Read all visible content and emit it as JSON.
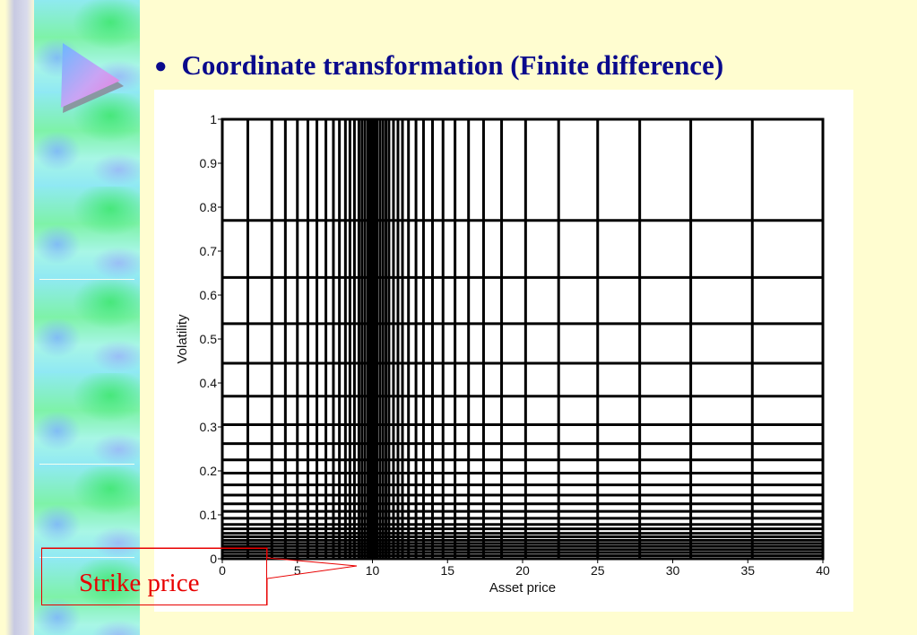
{
  "slide": {
    "title": "Coordinate transformation (Finite difference)",
    "bullet": "●"
  },
  "decor": {
    "logo_icon": "triangle-play-logo"
  },
  "callout": {
    "label": "Strike price",
    "color": "#e80000"
  },
  "colors": {
    "background": "#fffdd0",
    "title": "#0a0a8c",
    "grid": "#000000"
  },
  "chart_data": {
    "type": "grid",
    "title": "",
    "xlabel": "Asset price",
    "ylabel": "Volatility",
    "xlim": [
      0,
      40
    ],
    "ylim": [
      0,
      1
    ],
    "xticks": [
      0,
      5,
      10,
      15,
      20,
      25,
      30,
      35,
      40
    ],
    "yticks": [
      0,
      0.1,
      0.2,
      0.3,
      0.4,
      0.5,
      0.6,
      0.7,
      0.8,
      0.9,
      1
    ],
    "xtick_labels": [
      "0",
      "5",
      "10",
      "15",
      "20",
      "25",
      "30",
      "35",
      "40"
    ],
    "ytick_labels": [
      "0",
      "0.1",
      "0.2",
      "0.3",
      "0.4",
      "0.5",
      "0.6",
      "0.7",
      "0.8",
      "0.9",
      "1"
    ],
    "grid_x": [
      0,
      1.7,
      3.3,
      4.2,
      5,
      5.7,
      6.3,
      6.9,
      7.4,
      7.8,
      8.2,
      8.5,
      8.8,
      9.1,
      9.3,
      9.5,
      9.7,
      9.8,
      9.9,
      10,
      10.1,
      10.2,
      10.3,
      10.5,
      10.7,
      10.9,
      11.1,
      11.4,
      11.7,
      12,
      12.4,
      12.9,
      13.4,
      14,
      14.7,
      15.5,
      16.4,
      17.4,
      18.6,
      20.2,
      22.4,
      25,
      27.8,
      31.2,
      35.3,
      40
    ],
    "grid_y": [
      0,
      0.007,
      0.014,
      0.021,
      0.028,
      0.035,
      0.042,
      0.05,
      0.058,
      0.068,
      0.078,
      0.092,
      0.108,
      0.125,
      0.145,
      0.168,
      0.195,
      0.225,
      0.262,
      0.305,
      0.37,
      0.445,
      0.535,
      0.64,
      0.77,
      1
    ],
    "annotations": [
      {
        "text": "Strike price",
        "x": 10,
        "y": 0
      }
    ]
  }
}
